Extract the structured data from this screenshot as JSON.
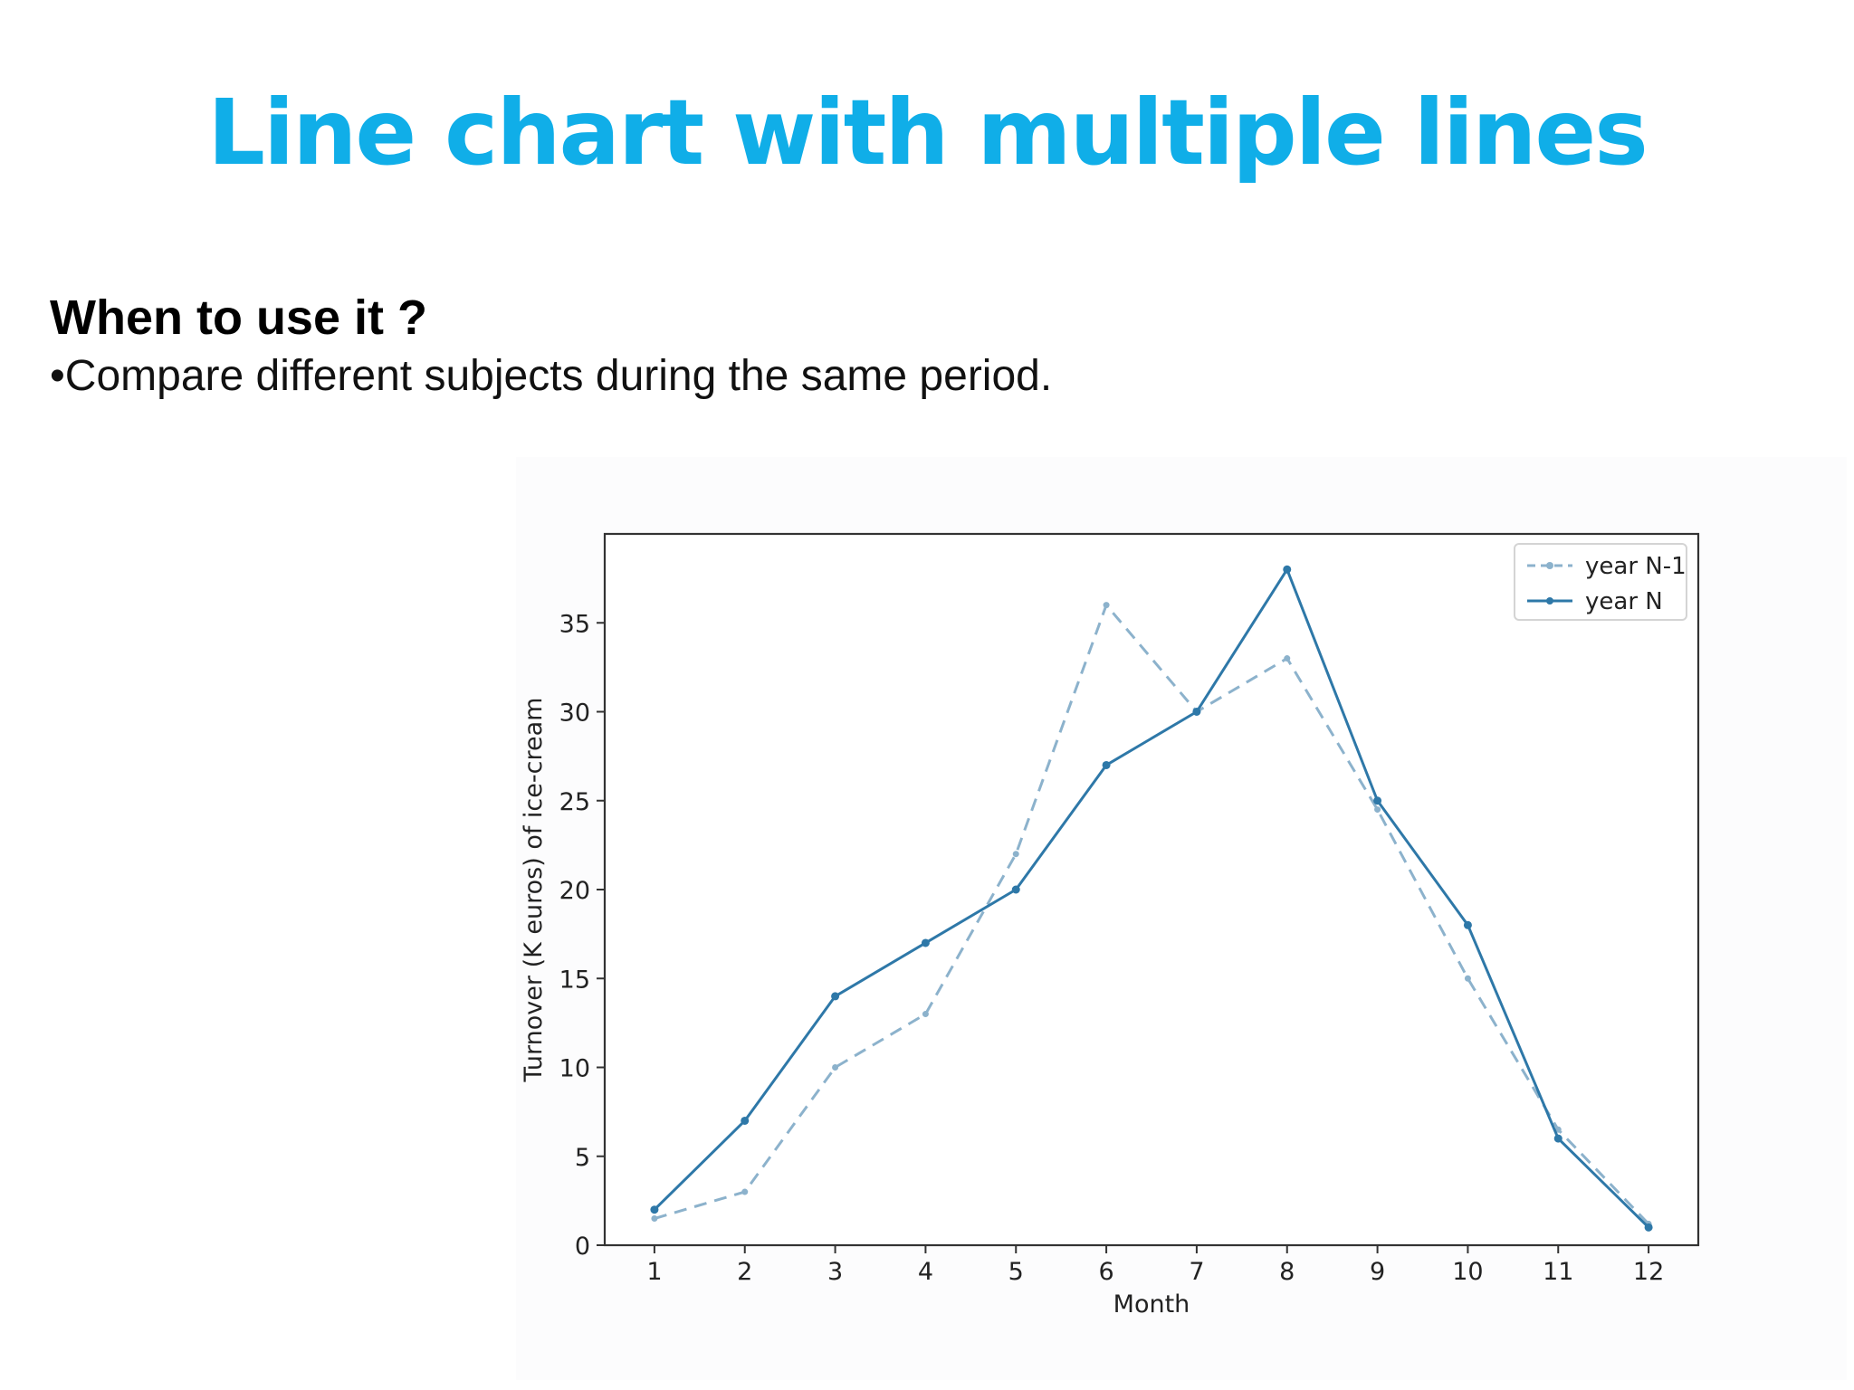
{
  "slide": {
    "title": "Line chart with multiple lines",
    "heading": "When to use it ?",
    "bullet": "•Compare different subjects during the same period."
  },
  "colors": {
    "title": "#10aee8",
    "series_n": "#2e78a8",
    "series_n1": "#8cb2cc"
  },
  "chart_data": {
    "type": "line",
    "title": "",
    "xlabel": "Month",
    "ylabel": "Turnover (K euros) of ice-cream",
    "x": [
      1,
      2,
      3,
      4,
      5,
      6,
      7,
      8,
      9,
      10,
      11,
      12
    ],
    "xlim": [
      0.45,
      12.55
    ],
    "ylim": [
      0,
      40
    ],
    "yticks": [
      0,
      5,
      10,
      15,
      20,
      25,
      30,
      35
    ],
    "legend_position": "upper right",
    "grid": false,
    "series": [
      {
        "name": "year N-1",
        "style": "dashed",
        "color": "#8cb2cc",
        "values": [
          1.5,
          3,
          10,
          13,
          22,
          36,
          30,
          33,
          24.5,
          15,
          6.5,
          1.2
        ]
      },
      {
        "name": "year N",
        "style": "solid",
        "color": "#2e78a8",
        "values": [
          2,
          7,
          14,
          17,
          20,
          27,
          30,
          38,
          25,
          18,
          6,
          1
        ]
      }
    ]
  }
}
